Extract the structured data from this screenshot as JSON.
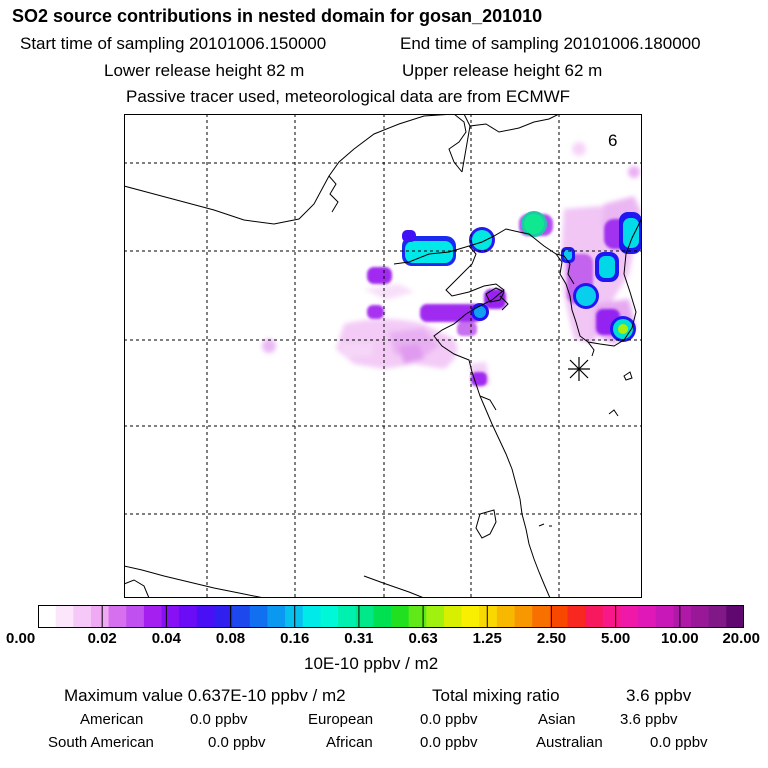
{
  "header": {
    "title": "SO2 source contributions in nested domain for gosan_201010",
    "start_time": "Start time of sampling 20101006.150000",
    "end_time": "End time of sampling 20101006.180000",
    "lower_release": "Lower release height   82 m",
    "upper_release": "Upper release height   62 m",
    "tracer_note": "Passive tracer used, meteorological data are from ECMWF"
  },
  "map": {
    "panel_number": "6",
    "receptor_marker": "gosan-receptor-star"
  },
  "colorbar": {
    "colors": [
      "#ffffff",
      "#fbe6fb",
      "#f6c8f8",
      "#efaaf3",
      "#d770ee",
      "#c050f0",
      "#a520f0",
      "#8810f5",
      "#6a0cf5",
      "#4a10f5",
      "#3020f0",
      "#1c48ee",
      "#1070f0",
      "#0a98f0",
      "#08c0ee",
      "#00eaea",
      "#00f8d8",
      "#00f0b0",
      "#00e888",
      "#00e050",
      "#20e020",
      "#60e818",
      "#a0f010",
      "#d8f000",
      "#f8f000",
      "#f8d800",
      "#f8b800",
      "#f89800",
      "#f87000",
      "#f84800",
      "#f82820",
      "#f81860",
      "#f81888",
      "#f018a8",
      "#e018b8",
      "#c818b8",
      "#b018a8",
      "#981898",
      "#801888",
      "#600870"
    ],
    "ticks": [
      "0.00",
      "0.02",
      "0.04",
      "0.08",
      "0.16",
      "0.31",
      "0.63",
      "1.25",
      "2.50",
      "5.00",
      "10.00",
      "20.00"
    ],
    "units": "10E-10 ppbv / m2"
  },
  "summary": {
    "max_value": "Maximum value  0.637E-10 ppbv / m2",
    "total_label": "Total mixing ratio",
    "total_value": "3.6 ppbv",
    "regions": [
      {
        "name": "American",
        "value": "0.0 ppbv"
      },
      {
        "name": "European",
        "value": "0.0 ppbv"
      },
      {
        "name": "Asian",
        "value": "3.6 ppbv"
      },
      {
        "name": "South American",
        "value": "0.0 ppbv"
      },
      {
        "name": "African",
        "value": "0.0 ppbv"
      },
      {
        "name": "Australian",
        "value": "0.0 ppbv"
      }
    ]
  }
}
